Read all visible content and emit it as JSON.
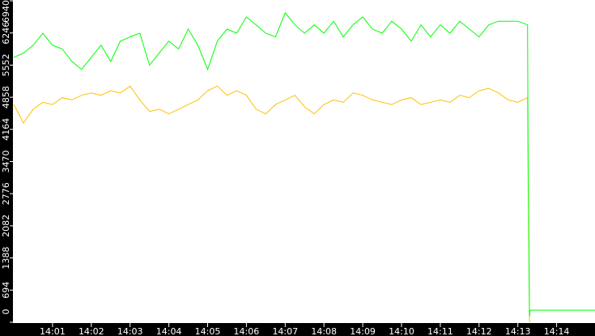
{
  "chart_data": {
    "type": "line",
    "title": "",
    "xlabel": "",
    "ylabel": "",
    "ylim": [
      0,
      6940
    ],
    "xlim": [
      "14:00:00",
      "14:15:00"
    ],
    "grid": false,
    "background": "#ffffff",
    "axis_background": "#000000",
    "y_ticks": [
      "0",
      "694",
      "1388",
      "2082",
      "2776",
      "3470",
      "4164",
      "4858",
      "5552",
      "6246",
      "6940"
    ],
    "x_ticks": [
      "14:01",
      "14:02",
      "14:03",
      "14:04",
      "14:05",
      "14:06",
      "14:07",
      "14:08",
      "14:09",
      "14:10",
      "14:11",
      "14:12",
      "14:13",
      "14:14"
    ],
    "series": [
      {
        "color": "#00ff00",
        "x": [
          "14:00:00",
          "14:00:15",
          "14:00:30",
          "14:00:45",
          "14:01:00",
          "14:01:15",
          "14:01:30",
          "14:01:45",
          "14:02:00",
          "14:02:15",
          "14:02:30",
          "14:02:45",
          "14:03:00",
          "14:03:15",
          "14:03:30",
          "14:03:45",
          "14:04:00",
          "14:04:15",
          "14:04:30",
          "14:04:45",
          "14:05:00",
          "14:05:15",
          "14:05:30",
          "14:05:45",
          "14:06:00",
          "14:06:15",
          "14:06:30",
          "14:06:45",
          "14:07:00",
          "14:07:15",
          "14:07:30",
          "14:07:45",
          "14:08:00",
          "14:08:15",
          "14:08:30",
          "14:08:45",
          "14:09:00",
          "14:09:15",
          "14:09:30",
          "14:09:45",
          "14:10:00",
          "14:10:15",
          "14:10:30",
          "14:10:45",
          "14:11:00",
          "14:11:15",
          "14:11:30",
          "14:11:45",
          "14:12:00",
          "14:12:15",
          "14:12:30",
          "14:12:45",
          "14:13:00",
          "14:13:15",
          "14:13:16",
          "14:13:18",
          "14:13:19",
          "14:15:00"
        ],
        "values": [
          5720,
          5810,
          5980,
          6240,
          5980,
          5900,
          5630,
          5460,
          5720,
          5980,
          5630,
          6070,
          6160,
          6240,
          5550,
          5810,
          6070,
          5900,
          6330,
          5980,
          5460,
          6070,
          6330,
          6240,
          6590,
          6420,
          6240,
          6160,
          6680,
          6420,
          6240,
          6420,
          6240,
          6500,
          6160,
          6420,
          6590,
          6330,
          6240,
          6500,
          6330,
          6070,
          6420,
          6160,
          6420,
          6240,
          6500,
          6330,
          6160,
          6420,
          6500,
          6500,
          6500,
          6420,
          3060,
          120,
          260,
          260
        ]
      },
      {
        "color": "#ffc000",
        "x": [
          "14:00:00",
          "14:00:15",
          "14:00:30",
          "14:00:45",
          "14:01:00",
          "14:01:15",
          "14:01:30",
          "14:01:45",
          "14:02:00",
          "14:02:15",
          "14:02:30",
          "14:02:45",
          "14:03:00",
          "14:03:15",
          "14:03:30",
          "14:03:45",
          "14:04:00",
          "14:04:15",
          "14:04:30",
          "14:04:45",
          "14:05:00",
          "14:05:15",
          "14:05:30",
          "14:05:45",
          "14:06:00",
          "14:06:15",
          "14:06:30",
          "14:06:45",
          "14:07:00",
          "14:07:15",
          "14:07:30",
          "14:07:45",
          "14:08:00",
          "14:08:15",
          "14:08:30",
          "14:08:45",
          "14:09:00",
          "14:09:15",
          "14:09:30",
          "14:09:45",
          "14:10:00",
          "14:10:15",
          "14:10:30",
          "14:10:45",
          "14:11:00",
          "14:11:15",
          "14:11:30",
          "14:11:45",
          "14:12:00",
          "14:12:15",
          "14:12:30",
          "14:12:45",
          "14:13:00",
          "14:13:15",
          "14:13:16",
          "14:13:17",
          "14:13:18"
        ],
        "values": [
          4700,
          4300,
          4600,
          4750,
          4700,
          4850,
          4800,
          4900,
          4950,
          4900,
          5000,
          4950,
          5100,
          4800,
          4550,
          4600,
          4500,
          4600,
          4700,
          4800,
          5000,
          5100,
          4900,
          5000,
          4900,
          4600,
          4500,
          4700,
          4800,
          4900,
          4650,
          4500,
          4700,
          4800,
          4750,
          4950,
          4900,
          4800,
          4750,
          4700,
          4800,
          4850,
          4700,
          4750,
          4800,
          4750,
          4900,
          4850,
          5000,
          5050,
          4950,
          4800,
          4750,
          4850,
          3100,
          2200,
          0
        ]
      }
    ]
  }
}
